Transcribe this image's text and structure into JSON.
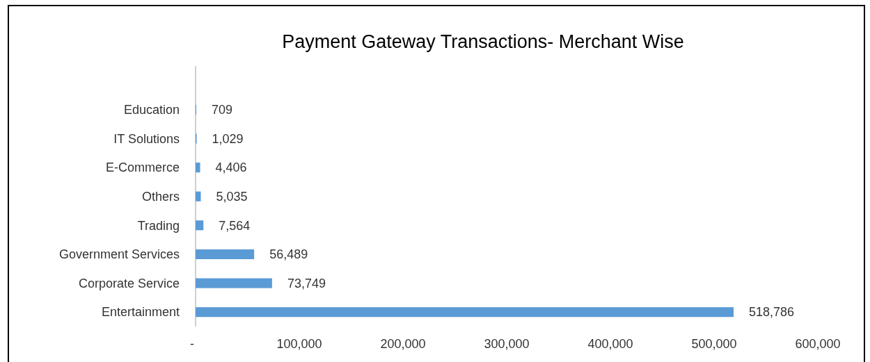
{
  "chart_data": {
    "type": "bar",
    "orientation": "horizontal",
    "title": "Payment Gateway Transactions- Merchant Wise",
    "categories": [
      "Education",
      "IT Solutions",
      "E-Commerce",
      "Others",
      "Trading",
      "Government Services",
      "Corporate Service",
      "Entertainment"
    ],
    "values": [
      709,
      1029,
      4406,
      5035,
      7564,
      56489,
      73749,
      518786
    ],
    "color": "#5b9bd5",
    "xlim": [
      0,
      600000
    ],
    "xticks": [
      {
        "value": 0,
        "label": "-"
      },
      {
        "value": 100000,
        "label": "100,000"
      },
      {
        "value": 200000,
        "label": "200,000"
      },
      {
        "value": 300000,
        "label": "300,000"
      },
      {
        "value": 400000,
        "label": "400,000"
      },
      {
        "value": 500000,
        "label": "500,000"
      },
      {
        "value": 600000,
        "label": "600,000"
      }
    ],
    "value_labels": [
      "709",
      "1,029",
      "4,406",
      "5,035",
      "7,564",
      "56,489",
      "73,749",
      "518,786"
    ],
    "grid": false
  }
}
